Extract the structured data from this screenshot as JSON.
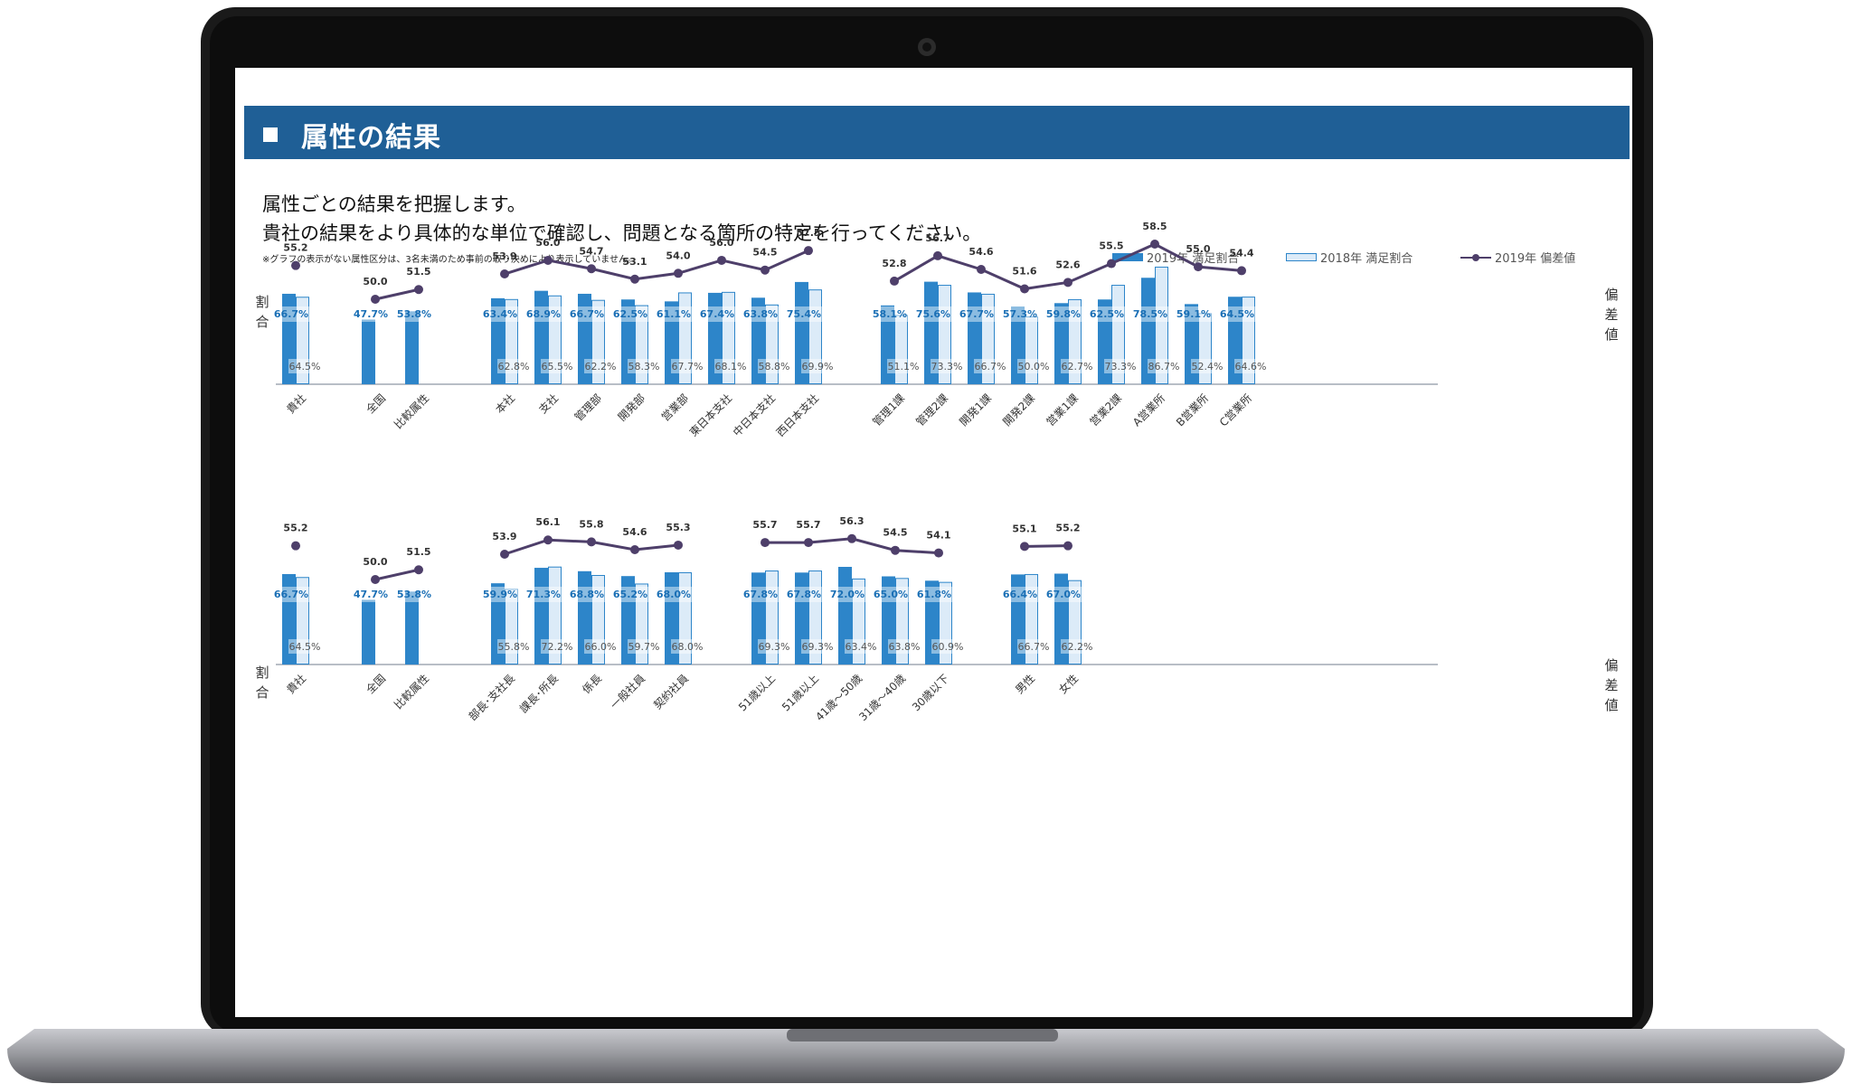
{
  "page": {
    "title": "属性の結果",
    "intro_line1": "属性ごとの結果を把握します。",
    "intro_line2": "貴社の結果をより具体的な単位で確認し、問題となる箇所の特定を行ってください。",
    "note": "※グラフの表示がない属性区分は、3名未満のため事前の取り決めにより表示していません。",
    "legend": {
      "solid": "2019年 満足割合",
      "light": "2018年 満足割合",
      "line": "2019年 偏差値"
    },
    "left_axis_label_1": "割",
    "left_axis_label_2": "合",
    "right_axis_label_1": "偏",
    "right_axis_label_2": "差",
    "right_axis_label_3": "値"
  },
  "colors": {
    "header": "#1f5f96",
    "bar_2019": "#2d85c9",
    "bar_2018_fill": "#dcebf8",
    "bar_2018_border": "#2d85c9",
    "line_2019": "#4e3f6a",
    "baseline": "#b8bec6",
    "label_2019": "#1a6fb5",
    "label_2018": "#555555",
    "laptop_frame": "#1a1a1a",
    "laptop_base": "#9a9ba0"
  },
  "chart_data": [
    {
      "type": "bar",
      "panel": "top",
      "y_share_range": [
        0,
        100
      ],
      "y_deviation_range": [
        35,
        60
      ],
      "groups": [
        {
          "categories": [
            "貴社"
          ],
          "series": [
            {
              "name": "2019年 満足割合",
              "values": [
                66.7
              ]
            },
            {
              "name": "2018年 満足割合",
              "values": [
                64.5
              ]
            },
            {
              "name": "2019年 偏差値",
              "values": [
                55.2
              ]
            }
          ]
        },
        {
          "categories": [
            "全国",
            "比較属性"
          ],
          "series": [
            {
              "name": "2019年 満足割合",
              "values": [
                47.7,
                53.8
              ]
            },
            {
              "name": "2018年 満足割合",
              "values": [
                null,
                null
              ]
            },
            {
              "name": "2019年 偏差値",
              "values": [
                50.0,
                51.5
              ]
            }
          ]
        },
        {
          "categories": [
            "本社",
            "支社",
            "管理部",
            "開発部",
            "営業部",
            "東日本支社",
            "中日本支社",
            "西日本支社"
          ],
          "series": [
            {
              "name": "2019年 満足割合",
              "values": [
                63.4,
                68.9,
                66.7,
                62.5,
                61.1,
                67.4,
                63.8,
                75.4
              ]
            },
            {
              "name": "2018年 満足割合",
              "values": [
                62.8,
                65.5,
                62.2,
                58.3,
                67.7,
                68.1,
                58.8,
                69.9
              ]
            },
            {
              "name": "2019年 偏差値",
              "values": [
                53.9,
                56.0,
                54.7,
                53.1,
                54.0,
                56.0,
                54.5,
                57.5
              ]
            }
          ]
        },
        {
          "categories": [
            "管理1課",
            "管理2課",
            "開発1課",
            "開発2課",
            "営業1課",
            "営業2課",
            "A営業所",
            "B営業所",
            "C営業所"
          ],
          "series": [
            {
              "name": "2019年 満足割合",
              "values": [
                58.1,
                75.6,
                67.7,
                57.3,
                59.8,
                62.5,
                78.5,
                59.1,
                64.5
              ]
            },
            {
              "name": "2018年 満足割合",
              "values": [
                51.1,
                73.3,
                66.7,
                50.0,
                62.7,
                73.3,
                86.7,
                52.4,
                64.6
              ]
            },
            {
              "name": "2019年 偏差値",
              "values": [
                52.8,
                56.7,
                54.6,
                51.6,
                52.6,
                55.5,
                58.5,
                55.0,
                54.4
              ]
            }
          ]
        }
      ]
    },
    {
      "type": "bar",
      "panel": "bottom",
      "y_share_range": [
        0,
        100
      ],
      "y_deviation_range": [
        35,
        60
      ],
      "groups": [
        {
          "categories": [
            "貴社"
          ],
          "series": [
            {
              "name": "2019年 満足割合",
              "values": [
                66.7
              ]
            },
            {
              "name": "2018年 満足割合",
              "values": [
                64.5
              ]
            },
            {
              "name": "2019年 偏差値",
              "values": [
                55.2
              ]
            }
          ]
        },
        {
          "categories": [
            "全国",
            "比較属性"
          ],
          "series": [
            {
              "name": "2019年 満足割合",
              "values": [
                47.7,
                53.8
              ]
            },
            {
              "name": "2018年 満足割合",
              "values": [
                null,
                null
              ]
            },
            {
              "name": "2019年 偏差値",
              "values": [
                50.0,
                51.5
              ]
            }
          ]
        },
        {
          "categories": [
            "部長･支社長",
            "課長･所長",
            "係長",
            "一般社員",
            "契約社員"
          ],
          "series": [
            {
              "name": "2019年 満足割合",
              "values": [
                59.9,
                71.3,
                68.8,
                65.2,
                68.0
              ]
            },
            {
              "name": "2018年 満足割合",
              "values": [
                55.8,
                72.2,
                66.0,
                59.7,
                68.0
              ]
            },
            {
              "name": "2019年 偏差値",
              "values": [
                53.9,
                56.1,
                55.8,
                54.6,
                55.3
              ]
            }
          ]
        },
        {
          "categories": [
            "51歳以上",
            "51歳以上",
            "41歳～50歳",
            "31歳～40歳",
            "30歳以下"
          ],
          "series": [
            {
              "name": "2019年 満足割合",
              "values": [
                67.8,
                67.8,
                72.0,
                65.0,
                61.8
              ]
            },
            {
              "name": "2018年 満足割合",
              "values": [
                69.3,
                69.3,
                63.4,
                63.8,
                60.9
              ]
            },
            {
              "name": "2019年 偏差値",
              "values": [
                55.7,
                55.7,
                56.3,
                54.5,
                54.1
              ]
            }
          ]
        },
        {
          "categories": [
            "男性",
            "女性"
          ],
          "series": [
            {
              "name": "2019年 満足割合",
              "values": [
                66.4,
                67.0
              ]
            },
            {
              "name": "2018年 満足割合",
              "values": [
                66.7,
                62.2
              ]
            },
            {
              "name": "2019年 偏差値",
              "values": [
                55.1,
                55.2
              ]
            }
          ]
        }
      ]
    }
  ]
}
